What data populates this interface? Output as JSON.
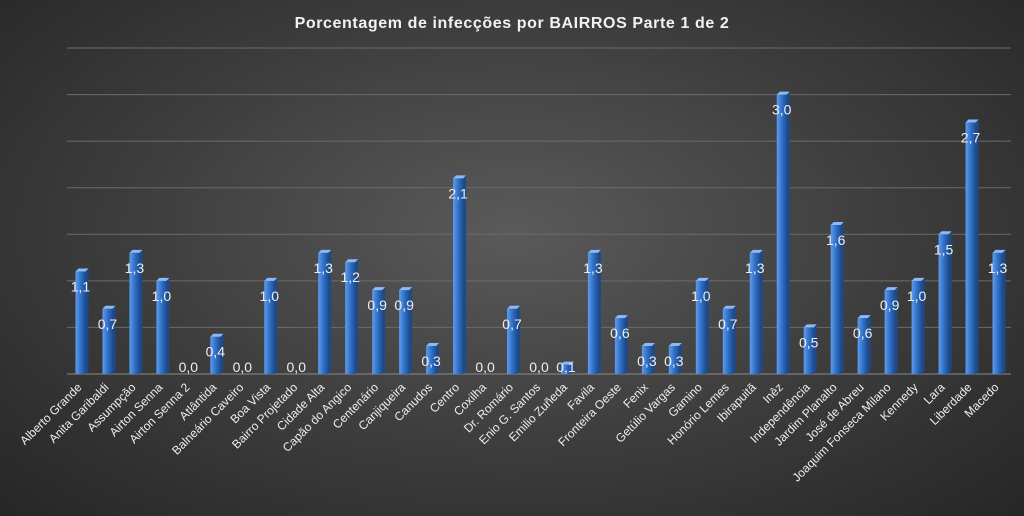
{
  "chart_data": {
    "type": "bar",
    "title": "Porcentagem  de infecções  por BAIRROS  Parte  1 de 2",
    "xlabel": "",
    "ylabel": "",
    "ylim": [
      0,
      3.5
    ],
    "grid": true,
    "legend": "none",
    "bar_color": "#2f6fc4",
    "categories": [
      "Alberto Grande",
      "Anita Garibaldi",
      "Assumpção",
      "Airton Senna",
      "Airton Senna 2",
      "Atlântida",
      "Balneário Caveiro",
      "Boa Vista",
      "Bairro Projetado",
      "Cidade Alta",
      "Capão do Angico",
      "Centenário",
      "Canjiqueira",
      "Canudos",
      "Centro",
      "Coxilha",
      "Dr. Romário",
      "Enio G. Santos",
      "Emilio Zuñeda",
      "Favila",
      "Fronteira Oeste",
      "Fenix",
      "Getúlio Vargas",
      "Gamino",
      "Honório Lemes",
      "Ibirapuitã",
      "Inêz",
      "Independência",
      "Jardim Planalto",
      "José de Abreu",
      "Joaquim Fonseca Milano",
      "Kennedy",
      "Lara",
      "Liberdade",
      "Macedo"
    ],
    "values": [
      1.1,
      0.7,
      1.3,
      1.0,
      0.0,
      0.4,
      0.0,
      1.0,
      0.0,
      1.3,
      1.2,
      0.9,
      0.9,
      0.3,
      2.1,
      0.0,
      0.7,
      0.0,
      0.1,
      1.3,
      0.6,
      0.3,
      0.3,
      1.0,
      0.7,
      1.3,
      3.0,
      0.5,
      1.6,
      0.6,
      0.9,
      1.0,
      1.5,
      2.7,
      1.3
    ],
    "labels": [
      "1,1",
      "0,7",
      "1,3",
      "1,0",
      "0,0",
      "0,4",
      "0,0",
      "1,0",
      "0,0",
      "1,3",
      "1,2",
      "0,9",
      "0,9",
      "0,3",
      "2,1",
      "0,0",
      "0,7",
      "0,0",
      "0,1",
      "1,3",
      "0,6",
      "0,3",
      "0,3",
      "1,0",
      "0,7",
      "1,3",
      "3,0",
      "0,5",
      "1,6",
      "0,6",
      "0,9",
      "1,0",
      "1,5",
      "2,7",
      "1,3"
    ]
  }
}
